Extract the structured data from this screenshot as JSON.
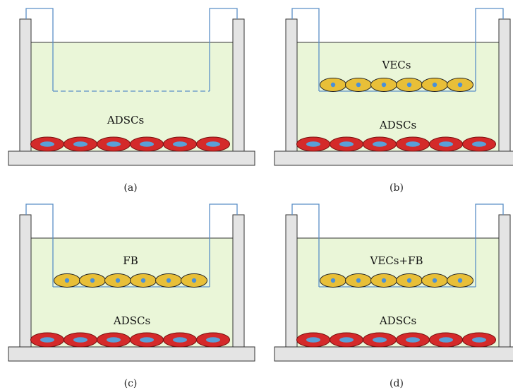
{
  "panels": [
    {
      "id": "a",
      "caption": "(a)",
      "insert_label": "",
      "bottom_label": "ADSCs",
      "has_insert_cells": false
    },
    {
      "id": "b",
      "caption": "(b)",
      "insert_label": "VECs",
      "bottom_label": "ADSCs",
      "has_insert_cells": true
    },
    {
      "id": "c",
      "caption": "(c)",
      "insert_label": "FB",
      "bottom_label": "ADSCs",
      "has_insert_cells": true
    },
    {
      "id": "d",
      "caption": "(d)",
      "insert_label": "VECs+FB",
      "bottom_label": "ADSCs",
      "has_insert_cells": true
    }
  ],
  "colors": {
    "medium": "#eaf6d8",
    "wall": "#e4e4e4",
    "outline": "#333333",
    "insert": "#5a8fc7",
    "bottom_cell": "#d42a2a",
    "bottom_nucleus": "#5aa0d8",
    "insert_cell": "#e8bf38",
    "insert_nucleus": "#4a90d9"
  }
}
